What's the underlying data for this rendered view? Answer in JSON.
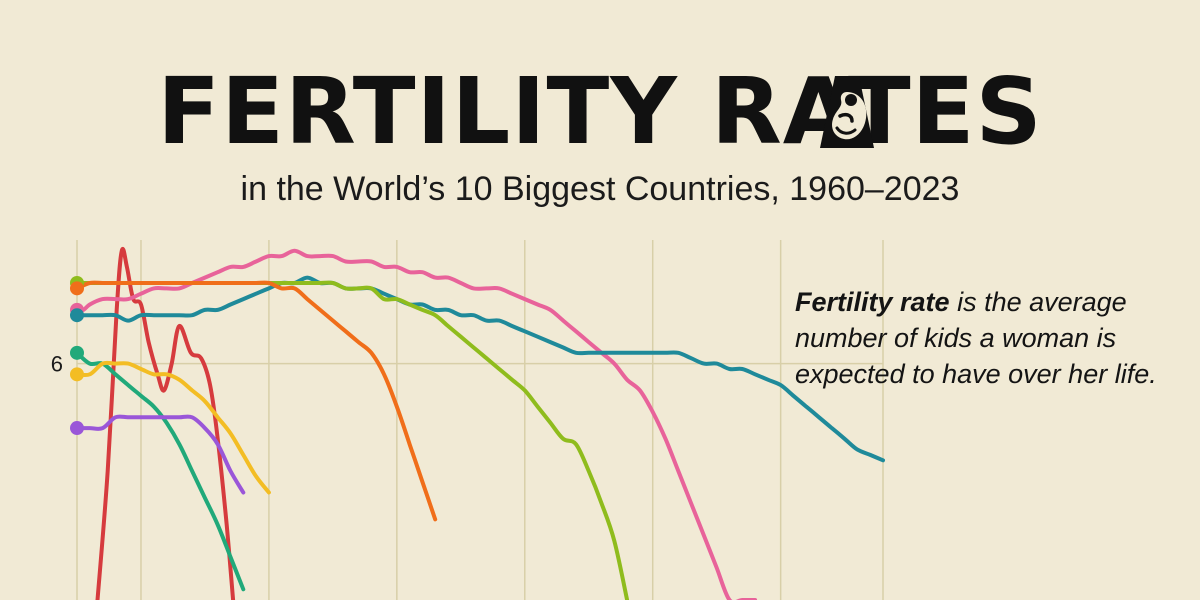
{
  "header": {
    "title": "FERTILITY RATES",
    "subtitle": "in the World’s 10 Biggest Countries, 1960–2023",
    "title_icon": "fetus-icon"
  },
  "note": {
    "bold": "Fertility rate",
    "rest": " is the average number of kids a woman is expected to have over her life."
  },
  "colors": {
    "background": "#f1ead5",
    "grid": "#d8cfa8",
    "text": "#111111"
  },
  "chart_data": {
    "type": "line",
    "title": "Fertility Rates in the World’s 10 Biggest Countries, 1960–2023",
    "xlabel": "",
    "ylabel": "",
    "xlim": [
      1960,
      2023
    ],
    "ylim": [
      3.8,
      7.15
    ],
    "y_ticks": [
      6
    ],
    "x_grid": [
      1965,
      1975,
      1985,
      1995,
      2005,
      2015
    ],
    "y_grid": [
      6
    ],
    "series": [
      {
        "name": "",
        "color": "#d63b3e",
        "x": [
          1961.6,
          1962.4,
          1963.1,
          1963.5,
          1963.9,
          1964.4,
          1965.0,
          1965.6,
          1966.3,
          1966.8,
          1967.4,
          1968.0,
          1968.9,
          1969.7,
          1970.4,
          1971.0,
          1971.7,
          1972.2
        ],
        "y": [
          3.8,
          5.0,
          6.5,
          7.05,
          6.9,
          6.6,
          6.55,
          6.2,
          5.9,
          5.75,
          6.0,
          6.35,
          6.1,
          6.05,
          5.8,
          5.3,
          4.5,
          3.8
        ]
      },
      {
        "name": "",
        "color": "#e8639a",
        "x": [
          1960,
          1960.5,
          1961,
          1962,
          1963,
          1964,
          1965,
          1966,
          1967,
          1968,
          1969,
          1970,
          1971,
          1972,
          1973,
          1974,
          1975,
          1976,
          1977,
          1978,
          1979,
          1980,
          1981,
          1982,
          1983,
          1984,
          1985,
          1986,
          1987,
          1988,
          1989,
          1990,
          1991,
          1992,
          1993,
          1994,
          1995,
          1996,
          1997,
          1998,
          1999,
          2000,
          2001,
          2002,
          2003,
          2004,
          2005,
          2006,
          2007,
          2008,
          2009,
          2010,
          2011,
          2012,
          2013
        ],
        "y": [
          6.5,
          6.5,
          6.55,
          6.6,
          6.6,
          6.6,
          6.65,
          6.7,
          6.7,
          6.7,
          6.75,
          6.8,
          6.85,
          6.9,
          6.9,
          6.95,
          7.0,
          7.0,
          7.05,
          7.0,
          7.0,
          7.0,
          6.95,
          6.95,
          6.95,
          6.9,
          6.9,
          6.85,
          6.85,
          6.8,
          6.8,
          6.75,
          6.7,
          6.7,
          6.7,
          6.65,
          6.6,
          6.55,
          6.5,
          6.4,
          6.3,
          6.2,
          6.1,
          6.0,
          5.85,
          5.75,
          5.55,
          5.3,
          5.0,
          4.7,
          4.4,
          4.1,
          3.8,
          3.8,
          3.8
        ]
      },
      {
        "name": "",
        "color": "#1f8a9a",
        "x": [
          1960,
          1960.5,
          1961,
          1962,
          1963,
          1964,
          1965,
          1966,
          1967,
          1968,
          1969,
          1970,
          1971,
          1972,
          1973,
          1974,
          1975,
          1976,
          1977,
          1978,
          1979,
          1980,
          1981,
          1982,
          1983,
          1984,
          1985,
          1986,
          1987,
          1988,
          1989,
          1990,
          1991,
          1992,
          1993,
          1994,
          1995,
          1996,
          1997,
          1998,
          1999,
          2000,
          2001,
          2002,
          2003,
          2004,
          2005,
          2006,
          2007,
          2008,
          2009,
          2010,
          2011,
          2012,
          2013,
          2014,
          2015,
          2016,
          2017,
          2018,
          2019,
          2020,
          2021,
          2022,
          2023
        ],
        "y": [
          6.45,
          6.45,
          6.45,
          6.45,
          6.45,
          6.4,
          6.45,
          6.45,
          6.45,
          6.45,
          6.45,
          6.5,
          6.5,
          6.55,
          6.6,
          6.65,
          6.7,
          6.75,
          6.75,
          6.8,
          6.75,
          6.75,
          6.7,
          6.7,
          6.7,
          6.65,
          6.6,
          6.55,
          6.55,
          6.5,
          6.5,
          6.45,
          6.45,
          6.4,
          6.4,
          6.35,
          6.3,
          6.25,
          6.2,
          6.15,
          6.1,
          6.1,
          6.1,
          6.1,
          6.1,
          6.1,
          6.1,
          6.1,
          6.1,
          6.05,
          6.0,
          6.0,
          5.95,
          5.95,
          5.9,
          5.85,
          5.8,
          5.7,
          5.6,
          5.5,
          5.4,
          5.3,
          5.2,
          5.15,
          5.1
        ]
      },
      {
        "name": "",
        "color": "#8fbc1d",
        "x": [
          1960,
          1961,
          1962,
          1963,
          1964,
          1965,
          1966,
          1967,
          1968,
          1969,
          1970,
          1971,
          1972,
          1973,
          1974,
          1975,
          1976,
          1977,
          1978,
          1979,
          1980,
          1981,
          1982,
          1983,
          1984,
          1985,
          1986,
          1987,
          1988,
          1989,
          1990,
          1991,
          1992,
          1993,
          1994,
          1995,
          1996,
          1997,
          1998,
          1999,
          2000,
          2001,
          2002,
          2003
        ],
        "y": [
          6.75,
          6.75,
          6.75,
          6.75,
          6.75,
          6.75,
          6.75,
          6.75,
          6.75,
          6.75,
          6.75,
          6.75,
          6.75,
          6.75,
          6.75,
          6.75,
          6.75,
          6.75,
          6.75,
          6.75,
          6.75,
          6.7,
          6.7,
          6.7,
          6.6,
          6.6,
          6.55,
          6.5,
          6.45,
          6.35,
          6.25,
          6.15,
          6.05,
          5.95,
          5.85,
          5.75,
          5.6,
          5.45,
          5.3,
          5.25,
          5.0,
          4.7,
          4.35,
          3.8
        ]
      },
      {
        "name": "",
        "color": "#f06e1a",
        "x": [
          1960,
          1961,
          1962,
          1963,
          1964,
          1965,
          1966,
          1967,
          1968,
          1969,
          1970,
          1971,
          1972,
          1973,
          1974,
          1975,
          1976,
          1977,
          1978,
          1979,
          1980,
          1981,
          1982,
          1983,
          1984,
          1985,
          1986,
          1987,
          1988
        ],
        "y": [
          6.7,
          6.75,
          6.75,
          6.75,
          6.75,
          6.75,
          6.75,
          6.75,
          6.75,
          6.75,
          6.75,
          6.75,
          6.75,
          6.75,
          6.75,
          6.75,
          6.7,
          6.7,
          6.6,
          6.5,
          6.4,
          6.3,
          6.2,
          6.1,
          5.9,
          5.6,
          5.25,
          4.9,
          4.55
        ]
      },
      {
        "name": "",
        "color": "#21a97a",
        "x": [
          1960,
          1961,
          1962,
          1963,
          1964,
          1965,
          1966,
          1967,
          1968,
          1969,
          1970,
          1971,
          1972,
          1973
        ],
        "y": [
          6.1,
          6.0,
          6.0,
          5.9,
          5.8,
          5.7,
          5.6,
          5.45,
          5.25,
          5.0,
          4.75,
          4.5,
          4.2,
          3.9
        ]
      },
      {
        "name": "",
        "color": "#f3bd24",
        "x": [
          1960,
          1961,
          1962,
          1963,
          1964,
          1965,
          1966,
          1967,
          1968,
          1969,
          1970,
          1971,
          1972,
          1973,
          1974,
          1975
        ],
        "y": [
          5.9,
          5.9,
          6.0,
          6.0,
          6.0,
          5.95,
          5.9,
          5.9,
          5.85,
          5.75,
          5.65,
          5.5,
          5.35,
          5.15,
          4.95,
          4.8
        ]
      },
      {
        "name": "",
        "color": "#9a56d8",
        "x": [
          1960,
          1961,
          1962,
          1963,
          1964,
          1965,
          1966,
          1967,
          1968,
          1969,
          1970,
          1971,
          1972,
          1973
        ],
        "y": [
          5.4,
          5.4,
          5.4,
          5.5,
          5.5,
          5.5,
          5.5,
          5.5,
          5.5,
          5.5,
          5.4,
          5.25,
          5.0,
          4.8
        ]
      }
    ]
  }
}
